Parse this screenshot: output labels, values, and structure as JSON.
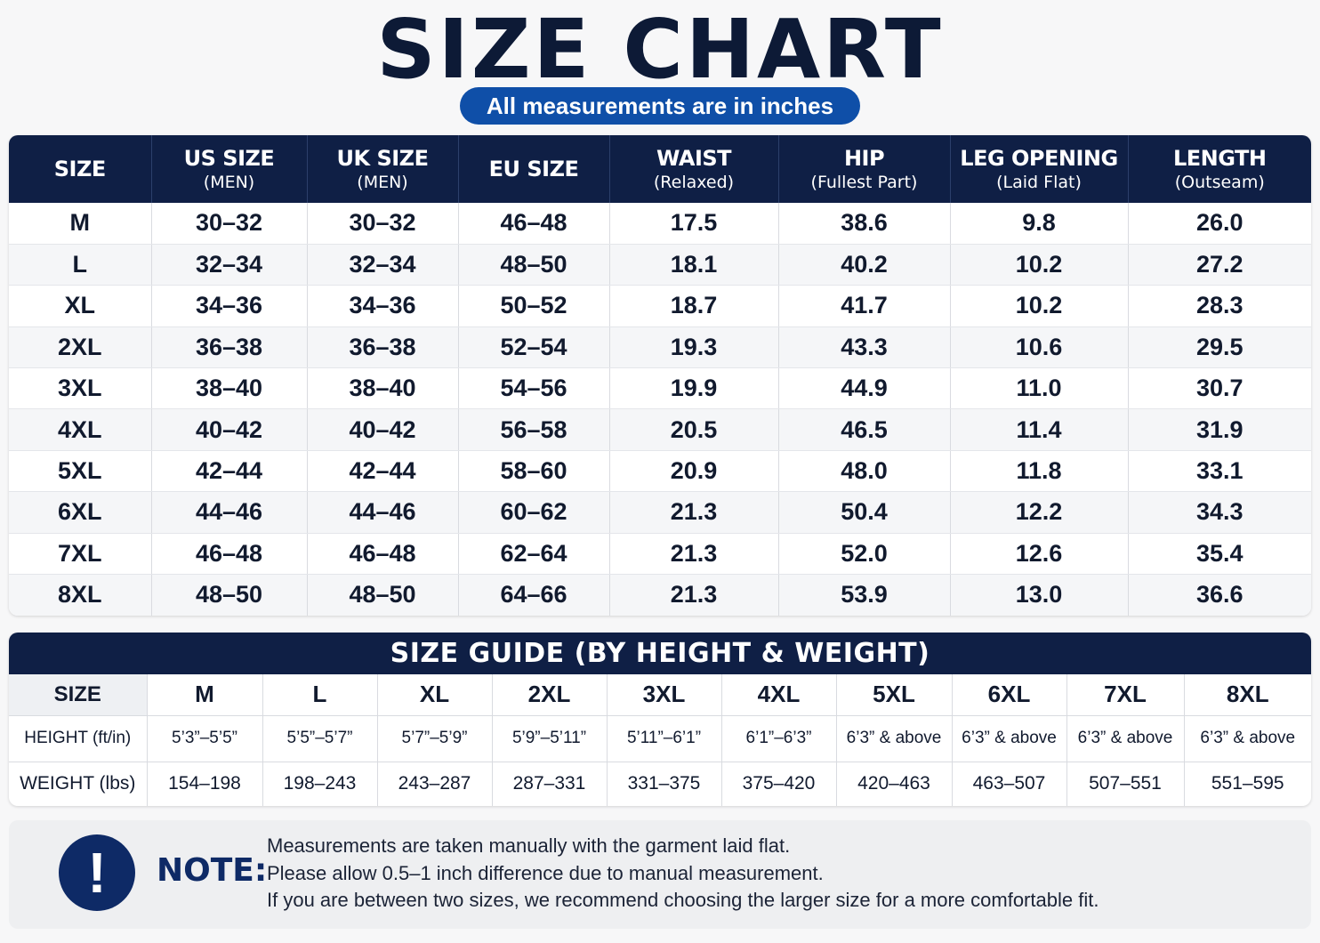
{
  "title": "SIZE CHART",
  "subtitle": "All measurements are in inches",
  "main_table": {
    "headers": [
      {
        "main": "SIZE",
        "sub": ""
      },
      {
        "main": "US SIZE",
        "sub": "(MEN)"
      },
      {
        "main": "UK SIZE",
        "sub": "(MEN)"
      },
      {
        "main": "EU SIZE",
        "sub": ""
      },
      {
        "main": "WAIST",
        "sub": "(Relaxed)"
      },
      {
        "main": "HIP",
        "sub": "(Fullest Part)"
      },
      {
        "main": "LEG OPENING",
        "sub": "(Laid Flat)"
      },
      {
        "main": "LENGTH",
        "sub": "(Outseam)"
      }
    ],
    "rows": [
      [
        "M",
        "30–32",
        "30–32",
        "46–48",
        "17.5",
        "38.6",
        "9.8",
        "26.0"
      ],
      [
        "L",
        "32–34",
        "32–34",
        "48–50",
        "18.1",
        "40.2",
        "10.2",
        "27.2"
      ],
      [
        "XL",
        "34–36",
        "34–36",
        "50–52",
        "18.7",
        "41.7",
        "10.2",
        "28.3"
      ],
      [
        "2XL",
        "36–38",
        "36–38",
        "52–54",
        "19.3",
        "43.3",
        "10.6",
        "29.5"
      ],
      [
        "3XL",
        "38–40",
        "38–40",
        "54–56",
        "19.9",
        "44.9",
        "11.0",
        "30.7"
      ],
      [
        "4XL",
        "40–42",
        "40–42",
        "56–58",
        "20.5",
        "46.5",
        "11.4",
        "31.9"
      ],
      [
        "5XL",
        "42–44",
        "42–44",
        "58–60",
        "20.9",
        "48.0",
        "11.8",
        "33.1"
      ],
      [
        "6XL",
        "44–46",
        "44–46",
        "60–62",
        "21.3",
        "50.4",
        "12.2",
        "34.3"
      ],
      [
        "7XL",
        "46–48",
        "46–48",
        "62–64",
        "21.3",
        "52.0",
        "12.6",
        "35.4"
      ],
      [
        "8XL",
        "48–50",
        "48–50",
        "64–66",
        "21.3",
        "53.9",
        "13.0",
        "36.6"
      ]
    ]
  },
  "guide": {
    "title": "SIZE GUIDE (BY HEIGHT & WEIGHT)",
    "size_label": "SIZE",
    "height_label": "HEIGHT (ft/in)",
    "weight_label": "WEIGHT (lbs)",
    "sizes": [
      "M",
      "L",
      "XL",
      "2XL",
      "3XL",
      "4XL",
      "5XL",
      "6XL",
      "7XL",
      "8XL"
    ],
    "heights": [
      "5’3”–5’5”",
      "5’5”–5’7”",
      "5’7”–5’9”",
      "5’9”–5’11”",
      "5’11”–6’1”",
      "6’1”–6’3”",
      "6’3” & above",
      "6’3” & above",
      "6’3” & above",
      "6’3” & above"
    ],
    "weights": [
      "154–198",
      "198–243",
      "243–287",
      "287–331",
      "331–375",
      "375–420",
      "420–463",
      "463–507",
      "507–551",
      "551–595"
    ]
  },
  "note": {
    "icon": "exclamation-icon",
    "icon_glyph": "!",
    "label": "NOTE:",
    "lines": [
      "Measurements are taken manually with the garment laid flat.",
      "Please allow 0.5–1 inch difference due to manual measurement.",
      "If you are between two sizes, we recommend choosing the larger size for a more comfortable fit."
    ]
  },
  "colors": {
    "navy": "#0f1f45",
    "accent_blue": "#0f4fa8",
    "icon_navy": "#0e2a66"
  }
}
